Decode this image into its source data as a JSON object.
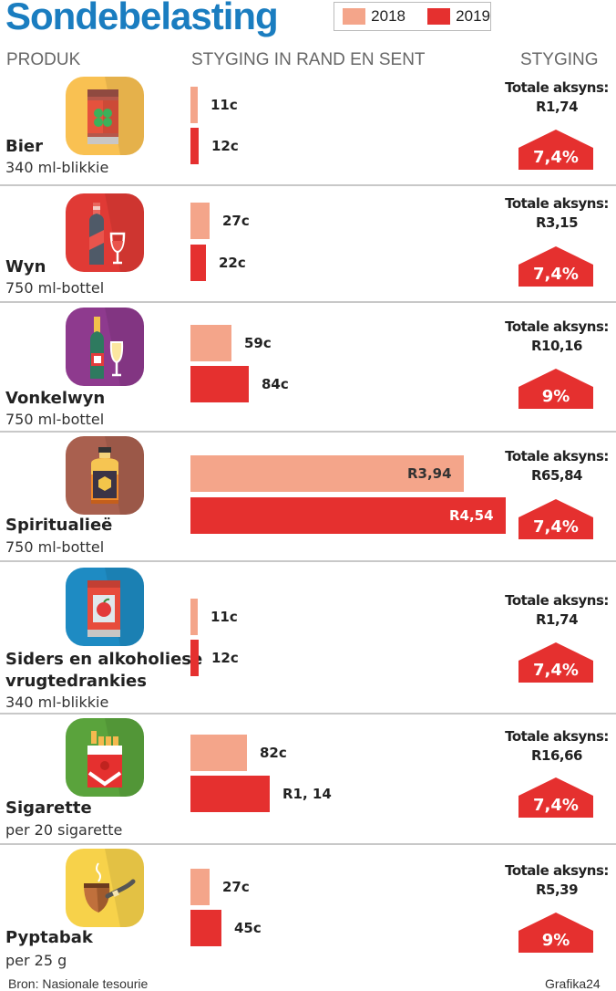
{
  "header": {
    "title": "Sondebelasting",
    "legend": [
      {
        "label": "2018",
        "color": "#f4a58a"
      },
      {
        "label": "2019",
        "color": "#e5302f"
      }
    ],
    "col_product": "PRODUK",
    "col_increase": "STYGING IN RAND EN SENT",
    "col_pct": "STYGING"
  },
  "products": [
    {
      "name": "Bier",
      "unit": "340 ml-blikkie",
      "icon": "beer-can-icon",
      "icon_bg": "#f9c152",
      "v2018_label": "11c",
      "v2019_label": "12c",
      "total_label": "Totale aksyns:",
      "total": "R1,74",
      "pct": "7,4%"
    },
    {
      "name": "Wyn",
      "unit": "750 ml-bottel",
      "icon": "wine-bottle-icon",
      "icon_bg": "#e03a35",
      "v2018_label": "27c",
      "v2019_label": "22c",
      "total_label": "Totale aksyns:",
      "total": "R3,15",
      "pct": "7,4%"
    },
    {
      "name": "Vonkelwyn",
      "unit": "750 ml-bottel",
      "icon": "sparkling-wine-icon",
      "icon_bg": "#8e3a8e",
      "v2018_label": "59c",
      "v2019_label": "84c",
      "total_label": "Totale aksyns:",
      "total": "R10,16",
      "pct": "9%"
    },
    {
      "name": "Spiritualieë",
      "unit": "750 ml-bottel",
      "icon": "spirits-bottle-icon",
      "icon_bg": "#a9604f",
      "v2018_label": "R3,94",
      "v2019_label": "R4,54",
      "total_label": "Totale aksyns:",
      "total": "R65,84",
      "pct": "7,4%"
    },
    {
      "name": "Siders en alkoholiese",
      "name2": "vrugtedrankies",
      "unit": "340 ml-blikkie",
      "icon": "cider-can-icon",
      "icon_bg": "#1e8bc3",
      "v2018_label": "11c",
      "v2019_label": "12c",
      "total_label": "Totale aksyns:",
      "total": "R1,74",
      "pct": "7,4%"
    },
    {
      "name": "Sigarette",
      "unit": "per 20 sigarette",
      "icon": "cigarette-pack-icon",
      "icon_bg": "#5aa33c",
      "v2018_label": "82c",
      "v2019_label": "R1, 14",
      "total_label": "Totale aksyns:",
      "total": "R16,66",
      "pct": "7,4%"
    },
    {
      "name": "Pyptabak",
      "unit": "per 25 g",
      "icon": "tobacco-pipe-icon",
      "icon_bg": "#f7d24a",
      "v2018_label": "27c",
      "v2019_label": "45c",
      "total_label": "Totale aksyns:",
      "total": "R5,39",
      "pct": "9%"
    }
  ],
  "footer": {
    "source": "Bron: Nasionale tesourie",
    "credit": "Grafika24"
  },
  "chart_data": {
    "type": "bar",
    "orientation": "horizontal",
    "title": "Sondebelasting",
    "xlabel": "STYGING IN RAND EN SENT",
    "ylabel": "PRODUK",
    "unit": "Rand",
    "categories": [
      "Bier",
      "Wyn",
      "Vonkelwyn",
      "Spiritualieë",
      "Siders en alkoholiese vrugtedrankies",
      "Sigarette",
      "Pyptabak"
    ],
    "series": [
      {
        "name": "2018",
        "color": "#f4a58a",
        "values": [
          0.11,
          0.27,
          0.59,
          3.94,
          0.11,
          0.82,
          0.27
        ]
      },
      {
        "name": "2019",
        "color": "#e5302f",
        "values": [
          0.12,
          0.22,
          0.84,
          4.54,
          0.12,
          1.14,
          0.45
        ]
      }
    ],
    "totals": [
      "R1,74",
      "R3,15",
      "R10,16",
      "R65,84",
      "R1,74",
      "R16,66",
      "R5,39"
    ],
    "pct_increase": [
      7.4,
      7.4,
      9,
      7.4,
      7.4,
      7.4,
      9
    ],
    "legend_position": "top",
    "grid": false
  }
}
